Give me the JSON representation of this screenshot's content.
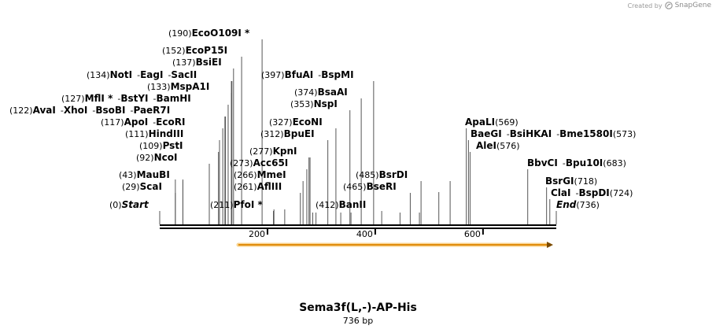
{
  "watermark": {
    "prefix": "Created by",
    "brand": "SnapGene"
  },
  "map": {
    "name": "Sema3f(L,-)-AP-His",
    "length_label": "736 bp",
    "length_bp": 736,
    "ruler_ticks": [
      "200",
      "400",
      "600"
    ],
    "feature_color": "#f0a11a"
  },
  "labels": [
    {
      "id": "ecoo109i",
      "pos": "(190)",
      "items": [
        {
          "name": "EcoO109I *"
        }
      ]
    },
    {
      "id": "ecop15i",
      "pos": "(152)",
      "items": [
        {
          "name": "EcoP15I"
        }
      ]
    },
    {
      "id": "bsiei",
      "pos": "(137)",
      "items": [
        {
          "name": "BsiEI"
        }
      ]
    },
    {
      "id": "noti",
      "pos": "(134)",
      "items": [
        {
          "name": "NotI"
        },
        {
          "name": "EagI"
        },
        {
          "name": "SacII"
        }
      ]
    },
    {
      "id": "mspa1i",
      "pos": "(133)",
      "items": [
        {
          "name": "MspA1I"
        }
      ]
    },
    {
      "id": "mlfi",
      "pos": "(127)",
      "items": [
        {
          "name": "MflI *"
        },
        {
          "name": "BstYI"
        },
        {
          "name": "BamHI"
        }
      ]
    },
    {
      "id": "avai",
      "pos": "(122)",
      "items": [
        {
          "name": "AvaI"
        },
        {
          "name": "XhoI"
        },
        {
          "name": "BsoBI"
        },
        {
          "name": "PaeR7I"
        }
      ]
    },
    {
      "id": "apoi",
      "pos": "(117)",
      "items": [
        {
          "name": "ApoI"
        },
        {
          "name": "EcoRI"
        }
      ]
    },
    {
      "id": "hindiii",
      "pos": "(111)",
      "items": [
        {
          "name": "HindIII"
        }
      ]
    },
    {
      "id": "psti",
      "pos": "(109)",
      "items": [
        {
          "name": "PstI"
        }
      ]
    },
    {
      "id": "ncoi",
      "pos": "(92)",
      "items": [
        {
          "name": "NcoI"
        }
      ]
    },
    {
      "id": "maubi",
      "pos": "(43)",
      "items": [
        {
          "name": "MauBI"
        }
      ]
    },
    {
      "id": "scai",
      "pos": "(29)",
      "items": [
        {
          "name": "ScaI"
        }
      ]
    },
    {
      "id": "start",
      "pos": "(0)",
      "items": [
        {
          "name": "Start",
          "italic": true
        }
      ]
    },
    {
      "id": "pfoi",
      "pos": "(211)",
      "items": [
        {
          "name": "PfoI *"
        }
      ]
    },
    {
      "id": "bfuai",
      "pos": "(397)",
      "items": [
        {
          "name": "BfuAI"
        },
        {
          "name": "BspMI"
        }
      ]
    },
    {
      "id": "bsaai",
      "pos": "(374)",
      "items": [
        {
          "name": "BsaAI"
        }
      ]
    },
    {
      "id": "nspi",
      "pos": "(353)",
      "items": [
        {
          "name": "NspI"
        }
      ]
    },
    {
      "id": "econi",
      "pos": "(327)",
      "items": [
        {
          "name": "EcoNI"
        }
      ]
    },
    {
      "id": "bpuei",
      "pos": "(312)",
      "items": [
        {
          "name": "BpuEI"
        }
      ]
    },
    {
      "id": "kpni",
      "pos": "(277)",
      "items": [
        {
          "name": "KpnI"
        }
      ]
    },
    {
      "id": "acc65i",
      "pos": "(273)",
      "items": [
        {
          "name": "Acc65I"
        }
      ]
    },
    {
      "id": "mmei",
      "pos": "(266)",
      "items": [
        {
          "name": "MmeI"
        }
      ]
    },
    {
      "id": "afliii",
      "pos": "(261)",
      "items": [
        {
          "name": "AflIII"
        }
      ]
    },
    {
      "id": "bsrdi",
      "pos": "(485)",
      "items": [
        {
          "name": "BsrDI"
        }
      ]
    },
    {
      "id": "bseri",
      "pos": "(465)",
      "items": [
        {
          "name": "BseRI"
        }
      ]
    },
    {
      "id": "banii",
      "pos": "(412)",
      "items": [
        {
          "name": "BanII"
        }
      ]
    },
    {
      "id": "apali",
      "name_first": true,
      "pos": "(569)",
      "items": [
        {
          "name": "ApaLI"
        }
      ]
    },
    {
      "id": "baegi",
      "name_first": true,
      "pos": "(573)",
      "items": [
        {
          "name": "BaeGI"
        },
        {
          "name": "BsiHKAI"
        },
        {
          "name": "Bme1580I"
        }
      ]
    },
    {
      "id": "alei",
      "name_first": true,
      "pos": "(576)",
      "items": [
        {
          "name": "AleI"
        }
      ]
    },
    {
      "id": "bbvci",
      "name_first": true,
      "pos": "(683)",
      "items": [
        {
          "name": "BbvCI"
        },
        {
          "name": "Bpu10I"
        }
      ]
    },
    {
      "id": "bsrgi",
      "name_first": true,
      "pos": "(718)",
      "items": [
        {
          "name": "BsrGI"
        }
      ]
    },
    {
      "id": "clai",
      "name_first": true,
      "pos": "(724)",
      "items": [
        {
          "name": "ClaI"
        },
        {
          "name": "BspDI"
        }
      ]
    },
    {
      "id": "end",
      "name_first": true,
      "pos": "(736)",
      "items": [
        {
          "name": "End",
          "italic": true
        }
      ]
    }
  ]
}
